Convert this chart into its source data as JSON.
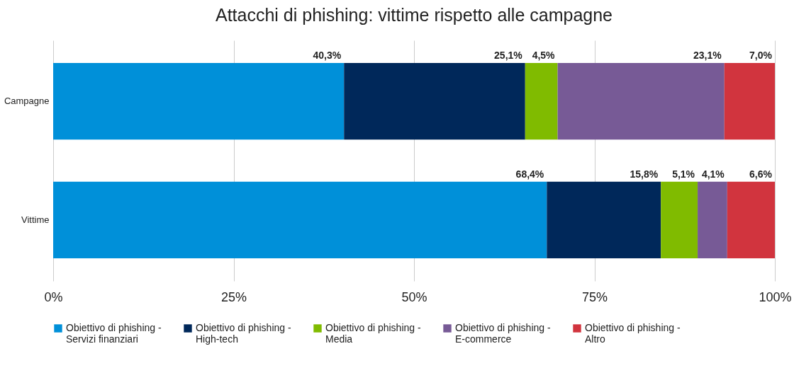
{
  "chart_data": {
    "type": "bar",
    "orientation": "horizontal",
    "stacked": true,
    "title": "Attacchi di phishing: vittime rispetto alle campagne",
    "categories": [
      "Campagne",
      "Vittime"
    ],
    "series": [
      {
        "name": "Obiettivo di phishing - Servizi finanziari",
        "color": "#0090d9",
        "values": [
          40.3,
          68.4
        ],
        "value_labels": [
          "40,3%",
          "68,4%"
        ]
      },
      {
        "name": "Obiettivo di phishing - High-tech",
        "color": "#00285a",
        "values": [
          25.1,
          15.8
        ],
        "value_labels": [
          "25,1%",
          "15,8%"
        ]
      },
      {
        "name": "Obiettivo di phishing - Media",
        "color": "#80bb00",
        "values": [
          4.5,
          5.1
        ],
        "value_labels": [
          "4,5%",
          "5,1%"
        ]
      },
      {
        "name": "Obiettivo di phishing - E-commerce",
        "color": "#775a96",
        "values": [
          23.1,
          4.1
        ],
        "value_labels": [
          "23,1%",
          "4,1%"
        ]
      },
      {
        "name": "Obiettivo di phishing - Altro",
        "color": "#d1343e",
        "values": [
          7.0,
          6.6
        ],
        "value_labels": [
          "7,0%",
          "6,6%"
        ]
      }
    ],
    "xlim": [
      0,
      100
    ],
    "xticks": [
      {
        "value": 0,
        "label": "0%"
      },
      {
        "value": 25,
        "label": "25%"
      },
      {
        "value": 50,
        "label": "50%"
      },
      {
        "value": 75,
        "label": "75%"
      },
      {
        "value": 100,
        "label": "100%"
      }
    ],
    "grid": "x",
    "legend": "bottom"
  }
}
